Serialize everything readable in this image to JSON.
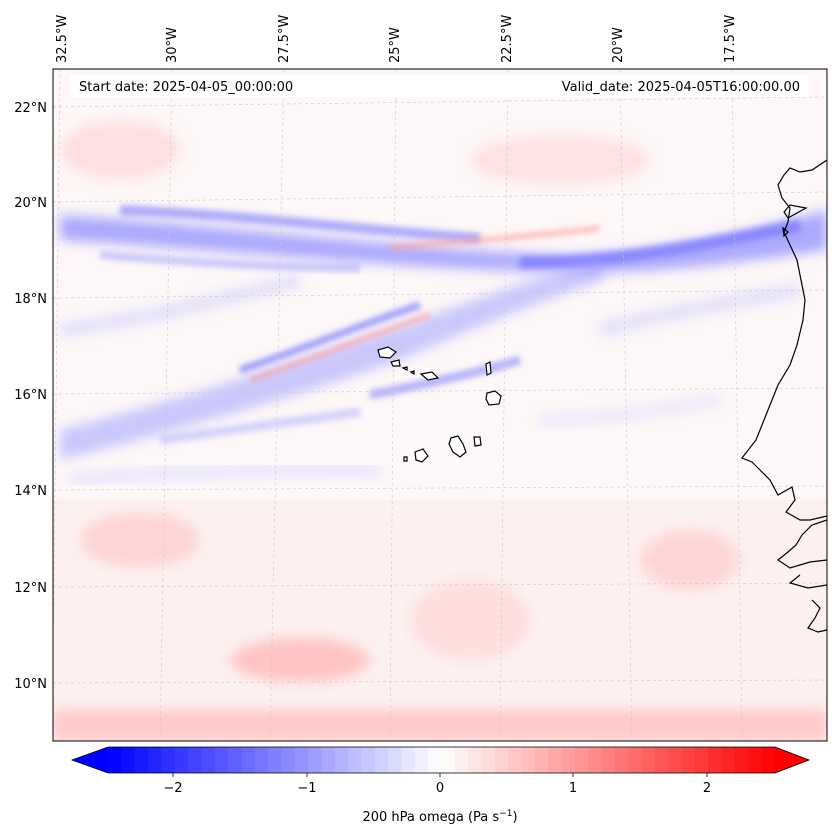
{
  "header": {
    "start_date": "Start date: 2025-04-05_00:00:00",
    "valid_date": "Valid_date: 2025-04-05T16:00:00.00"
  },
  "axes": {
    "lon_labels": [
      "32.5°W",
      "30°W",
      "27.5°W",
      "25°W",
      "22.5°W",
      "20°W",
      "17.5°W"
    ],
    "lat_labels": [
      "22°N",
      "20°N",
      "18°N",
      "16°N",
      "14°N",
      "12°N",
      "10°N"
    ]
  },
  "colorbar": {
    "ticks": [
      "−2",
      "−1",
      "0",
      "1",
      "2"
    ],
    "label": "200 hPa omega (Pa s",
    "label_sup": "−1",
    "label_end": ")",
    "vmin": -2.6,
    "vmax": 2.6,
    "colormap": "bwr",
    "negative_color": "#0000ff",
    "positive_color": "#ff0000"
  }
}
